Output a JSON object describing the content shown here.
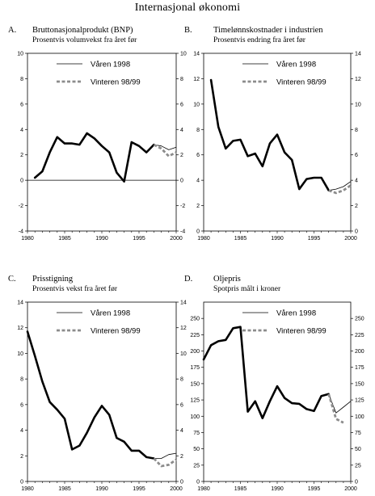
{
  "page": {
    "title": "Internasjonal økonomi"
  },
  "chart_data": [
    {
      "type": "line",
      "letter": "A.",
      "title": "Bruttonasjonalprodukt (BNP)",
      "subtitle": "Prosentvis volumvekst fra året før",
      "xlim": [
        1980,
        2000
      ],
      "xticks": [
        1980,
        1985,
        1990,
        1995,
        2000
      ],
      "ylim": [
        -4,
        10
      ],
      "yticks": [
        -4,
        -2,
        0,
        2,
        4,
        6,
        8,
        10
      ],
      "zero_line": true,
      "legend": [
        "Våren 1998",
        "Vinteren 98/99"
      ],
      "series": [
        {
          "name": "Våren 1998",
          "style": "main",
          "x": [
            1981,
            1982,
            1983,
            1984,
            1985,
            1986,
            1987,
            1988,
            1989,
            1990,
            1991,
            1992,
            1993,
            1994,
            1995,
            1996,
            1997,
            1998,
            1999,
            2000
          ],
          "y": [
            0.2,
            0.7,
            2.2,
            3.4,
            2.9,
            2.9,
            2.8,
            3.7,
            3.3,
            2.7,
            2.2,
            0.6,
            -0.1,
            3.0,
            2.7,
            2.2,
            2.8,
            2.7,
            2.4,
            2.6
          ]
        },
        {
          "name": "Vinteren 98/99",
          "style": "dash",
          "x": [
            1997,
            1998,
            1999,
            2000
          ],
          "y": [
            2.8,
            2.5,
            1.9,
            2.2
          ]
        }
      ]
    },
    {
      "type": "line",
      "letter": "B.",
      "title": "Timelønnskostnader i industrien",
      "subtitle": "Prosentvis endring fra året før",
      "xlim": [
        1980,
        2000
      ],
      "xticks": [
        1980,
        1985,
        1990,
        1995,
        2000
      ],
      "ylim": [
        0,
        14
      ],
      "yticks": [
        0,
        2,
        4,
        6,
        8,
        10,
        12,
        14
      ],
      "zero_line": false,
      "legend": [
        "Våren 1998",
        "Vinteren 98/99"
      ],
      "series": [
        {
          "name": "Våren 1998",
          "style": "main",
          "x": [
            1981,
            1982,
            1983,
            1984,
            1985,
            1986,
            1987,
            1988,
            1989,
            1990,
            1991,
            1992,
            1993,
            1994,
            1995,
            1996,
            1997,
            1998,
            1999,
            2000
          ],
          "y": [
            11.9,
            8.2,
            6.5,
            7.1,
            7.2,
            5.9,
            6.1,
            5.1,
            6.9,
            7.6,
            6.2,
            5.6,
            3.3,
            4.1,
            4.2,
            4.2,
            3.2,
            3.3,
            3.5,
            3.9
          ]
        },
        {
          "name": "Vinteren 98/99",
          "style": "dash",
          "x": [
            1997,
            1998,
            1999,
            2000
          ],
          "y": [
            3.2,
            3.0,
            3.2,
            3.6
          ]
        }
      ]
    },
    {
      "type": "line",
      "letter": "C.",
      "title": "Prisstigning",
      "subtitle": "Prosentvis vekst fra året før",
      "xlim": [
        1980,
        2000
      ],
      "xticks": [
        1980,
        1985,
        1990,
        1995,
        2000
      ],
      "ylim": [
        0,
        14
      ],
      "yticks": [
        0,
        2,
        4,
        6,
        8,
        10,
        12,
        14
      ],
      "zero_line": false,
      "legend": [
        "Våren 1998",
        "Vinteren 98/99"
      ],
      "series": [
        {
          "name": "Våren 1998",
          "style": "main",
          "x": [
            1980,
            1981,
            1982,
            1983,
            1984,
            1985,
            1986,
            1987,
            1988,
            1989,
            1990,
            1991,
            1992,
            1993,
            1994,
            1995,
            1996,
            1997,
            1998,
            1999,
            2000
          ],
          "y": [
            11.7,
            9.8,
            7.8,
            6.2,
            5.6,
            4.9,
            2.5,
            2.8,
            3.8,
            5.0,
            5.9,
            5.2,
            3.4,
            3.1,
            2.4,
            2.4,
            1.9,
            1.8,
            1.8,
            2.1,
            2.2
          ]
        },
        {
          "name": "Vinteren 98/99",
          "style": "dash",
          "x": [
            1997,
            1998,
            1999,
            2000
          ],
          "y": [
            1.8,
            1.2,
            1.3,
            1.7
          ]
        }
      ]
    },
    {
      "type": "line",
      "letter": "D.",
      "title": "Oljepris",
      "subtitle": "Spotpris målt i kroner",
      "xlim": [
        1980,
        2000
      ],
      "xticks": [
        1980,
        1985,
        1990,
        1995,
        2000
      ],
      "ylim": [
        0,
        275
      ],
      "yticks": [
        0,
        25,
        50,
        75,
        100,
        125,
        150,
        175,
        200,
        225,
        250
      ],
      "zero_line": false,
      "legend": [
        "Våren 1998",
        "Vinteren 98/99"
      ],
      "series": [
        {
          "name": "Våren 1998",
          "style": "main",
          "x": [
            1980,
            1981,
            1982,
            1983,
            1984,
            1985,
            1986,
            1987,
            1988,
            1989,
            1990,
            1991,
            1992,
            1993,
            1994,
            1995,
            1996,
            1997,
            1998,
            1999,
            2000
          ],
          "y": [
            187,
            209,
            215,
            217,
            235,
            237,
            107,
            123,
            97,
            123,
            146,
            128,
            120,
            119,
            111,
            108,
            131,
            134,
            105,
            114,
            123
          ]
        },
        {
          "name": "Vinteren 98/99",
          "style": "dash",
          "x": [
            1997,
            1998,
            1999
          ],
          "y": [
            134,
            96,
            90
          ]
        }
      ]
    }
  ]
}
